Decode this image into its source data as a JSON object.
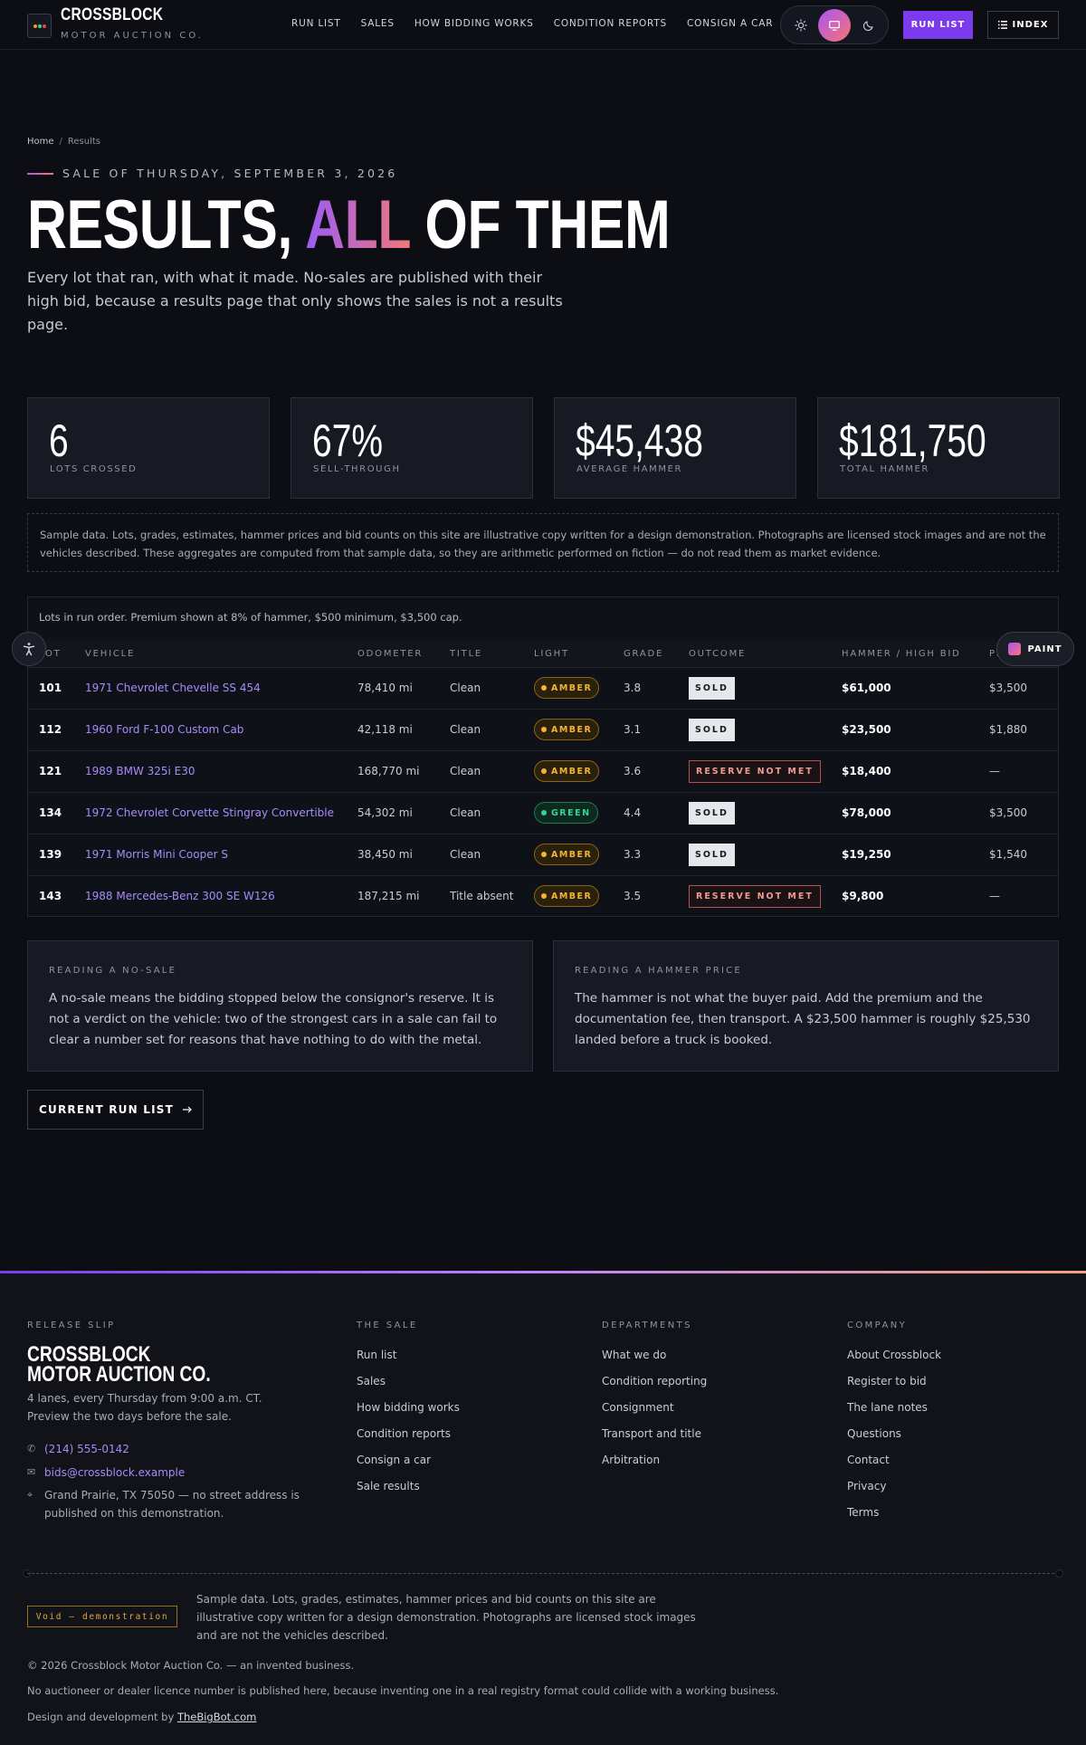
{
  "header": {
    "brand_name": "CROSSBLOCK",
    "brand_sub": "MOTOR AUCTION CO.",
    "nav": [
      "RUN LIST",
      "SALES",
      "HOW BIDDING WORKS",
      "CONDITION REPORTS",
      "CONSIGN A CAR"
    ],
    "run_list_button": "RUN LIST",
    "index_button": "INDEX",
    "theme_options": [
      "light",
      "system",
      "dark"
    ],
    "theme_selected": "system"
  },
  "hero": {
    "breadcrumb": [
      "Home",
      "Results"
    ],
    "breadcrumb_sep": "/",
    "eyebrow": "SALE OF THURSDAY, SEPTEMBER 3, 2026",
    "title_a": "RESULTS, ",
    "title_accent": "ALL",
    "title_b": " OF THEM",
    "lede": "Every lot that ran, with what it made. No-sales are published with their high bid, because a results page that only shows the sales is not a results page."
  },
  "stats": [
    {
      "value": "6",
      "label": "LOTS CROSSED"
    },
    {
      "value": "67%",
      "label": "SELL-THROUGH"
    },
    {
      "value": "$45,438",
      "label": "AVERAGE HAMMER"
    },
    {
      "value": "$181,750",
      "label": "TOTAL HAMMER"
    }
  ],
  "disclaimer": "Sample data. Lots, grades, estimates, hammer prices and bid counts on this site are illustrative copy written for a design demonstration. Photographs are licensed stock images and are not the vehicles described. These aggregates are computed from that sample data, so they are arithmetic performed on fiction — do not read them as market evidence.",
  "table": {
    "caption": "Lots in run order. Premium shown at 8% of hammer, $500 minimum, $3,500 cap.",
    "headers": [
      "LOT",
      "VEHICLE",
      "ODOMETER",
      "TITLE",
      "LIGHT",
      "GRADE",
      "OUTCOME",
      "HAMMER / HIGH BID",
      "PREMIUM"
    ],
    "rows": [
      {
        "lot": "101",
        "vehicle": "1971 Chevrolet Chevelle SS 454",
        "odometer": "78,410 mi",
        "title": "Clean",
        "light": "AMBER",
        "grade": "3.8",
        "outcome": "SOLD",
        "hammer": "$61,000",
        "premium": "$3,500"
      },
      {
        "lot": "112",
        "vehicle": "1960 Ford F-100 Custom Cab",
        "odometer": "42,118 mi",
        "title": "Clean",
        "light": "AMBER",
        "grade": "3.1",
        "outcome": "SOLD",
        "hammer": "$23,500",
        "premium": "$1,880"
      },
      {
        "lot": "121",
        "vehicle": "1989 BMW 325i E30",
        "odometer": "168,770 mi",
        "title": "Clean",
        "light": "AMBER",
        "grade": "3.6",
        "outcome": "RESERVE NOT MET",
        "hammer": "$18,400",
        "premium": "—"
      },
      {
        "lot": "134",
        "vehicle": "1972 Chevrolet Corvette Stingray Convertible",
        "odometer": "54,302 mi",
        "title": "Clean",
        "light": "GREEN",
        "grade": "4.4",
        "outcome": "SOLD",
        "hammer": "$78,000",
        "premium": "$3,500"
      },
      {
        "lot": "139",
        "vehicle": "1971 Morris Mini Cooper S",
        "odometer": "38,450 mi",
        "title": "Clean",
        "light": "AMBER",
        "grade": "3.3",
        "outcome": "SOLD",
        "hammer": "$19,250",
        "premium": "$1,540"
      },
      {
        "lot": "143",
        "vehicle": "1988 Mercedes-Benz 300 SE W126",
        "odometer": "187,215 mi",
        "title": "Title absent",
        "light": "AMBER",
        "grade": "3.5",
        "outcome": "RESERVE NOT MET",
        "hammer": "$9,800",
        "premium": "—"
      }
    ]
  },
  "floating": {
    "paint_label": "PAINT",
    "accessibility": "accessibility-icon"
  },
  "explainers": [
    {
      "kicker": "READING A NO-SALE",
      "text": "A no-sale means the bidding stopped below the consignor's reserve. It is not a verdict on the vehicle: two of the strongest cars in a sale can fail to clear a number set for reasons that have nothing to do with the metal."
    },
    {
      "kicker": "READING A HAMMER PRICE",
      "text": "The hammer is not what the buyer paid. Add the premium and the documentation fee, then transport. A $23,500 hammer is roughly $25,530 landed before a truck is booked."
    }
  ],
  "cta_label": "CURRENT RUN LIST",
  "footer": {
    "release_heading": "RELEASE SLIP",
    "brand_line1": "CROSSBLOCK",
    "brand_line2": "MOTOR AUCTION CO.",
    "schedule_1": "4 lanes, every Thursday from 9:00 a.m. CT.",
    "schedule_2": "Preview the two days before the sale.",
    "phone": "(214) 555-0142",
    "email": "bids@crossblock.example",
    "address_1": "Grand Prairie, TX 75050 — no street address is",
    "address_2": "published on this demonstration.",
    "sale_heading": "THE SALE",
    "sale_links": [
      "Run list",
      "Sales",
      "How bidding works",
      "Condition reports",
      "Consign a car",
      "Sale results"
    ],
    "dept_heading": "DEPARTMENTS",
    "dept_links": [
      "What we do",
      "Condition reporting",
      "Consignment",
      "Transport and title",
      "Arbitration"
    ],
    "company_heading": "COMPANY",
    "company_links": [
      "About Crossblock",
      "Register to bid",
      "The lane notes",
      "Questions",
      "Contact",
      "Privacy",
      "Terms"
    ],
    "void_stamp": "Void — demonstration",
    "sample_note_1": "Sample data. Lots, grades, estimates, hammer prices and bid counts on this site are",
    "sample_note_2": "illustrative copy written for a design demonstration. Photographs are licensed stock images",
    "sample_note_3": "and are not the vehicles described.",
    "copyright": "© 2026 Crossblock Motor Auction Co. — an invented business.",
    "licence_note": "No auctioneer or dealer licence number is published here, because inventing one in a real registry format could collide with a working business.",
    "credit_prefix": "Design and development by ",
    "credit_link": "TheBigBot.com"
  },
  "colors": {
    "accent": "#7c3aed",
    "link": "#a78bfa",
    "amber": "#f5b335",
    "green": "#34d399",
    "reserve": "#ef9b92"
  }
}
